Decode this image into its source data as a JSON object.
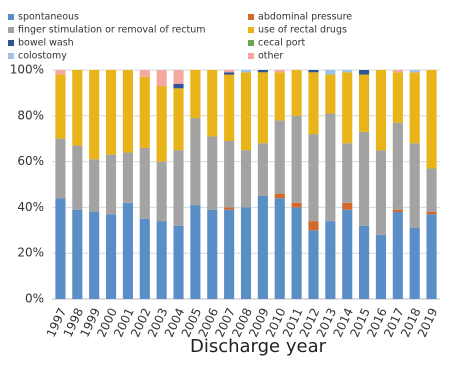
{
  "chart_data": {
    "type": "stacked_bar",
    "x_label": "Discharge year",
    "categories": [
      "1997",
      "1998",
      "1999",
      "2000",
      "2001",
      "2002",
      "2003",
      "2004",
      "2005",
      "2006",
      "2007",
      "2008",
      "2009",
      "2010",
      "2011",
      "2012",
      "2013",
      "2014",
      "2015",
      "2016",
      "2017",
      "2018",
      "2019"
    ],
    "series": [
      {
        "name": "spontaneous",
        "color": "#5a8ec6",
        "values": [
          44,
          39,
          38,
          37,
          42,
          35,
          34,
          32,
          41,
          39,
          39,
          40,
          45,
          44,
          40,
          30,
          34,
          39,
          32,
          28,
          38,
          31,
          37
        ]
      },
      {
        "name": "abdominal pressure",
        "color": "#d2692b",
        "values": [
          0,
          0,
          0,
          0,
          0,
          0,
          0,
          0,
          0,
          0,
          1,
          0,
          0,
          2,
          2,
          4,
          0,
          3,
          0,
          0,
          1,
          0,
          1
        ]
      },
      {
        "name": "finger stimulation or removal of rectum",
        "color": "#a3a3a3",
        "values": [
          26,
          28,
          23,
          26,
          22,
          31,
          26,
          33,
          38,
          32,
          29,
          25,
          23,
          32,
          38,
          38,
          47,
          26,
          41,
          37,
          38,
          37,
          19
        ]
      },
      {
        "name": "use of rectal drugs",
        "color": "#e8b419",
        "values": [
          28,
          33,
          39,
          37,
          36,
          31,
          33,
          27,
          21,
          29,
          29,
          34,
          31,
          21,
          20,
          27,
          17,
          31,
          25,
          35,
          22,
          31,
          43
        ]
      },
      {
        "name": "bowel wash",
        "color": "#2f5496",
        "values": [
          0,
          0,
          0,
          0,
          0,
          0,
          0,
          2,
          0,
          0,
          1,
          0,
          1,
          0,
          0,
          1,
          0,
          0,
          2,
          0,
          0,
          0,
          0
        ]
      },
      {
        "name": "cecal port",
        "color": "#6aa84f",
        "values": [
          0,
          0,
          0,
          0,
          0,
          0,
          0,
          0,
          0,
          0,
          0,
          0,
          0,
          0,
          0,
          0,
          0,
          0,
          0,
          0,
          0,
          0,
          0
        ]
      },
      {
        "name": "colostomy",
        "color": "#9dc3e6",
        "values": [
          0,
          0,
          0,
          0,
          0,
          0,
          0,
          0,
          0,
          0,
          0,
          1,
          0,
          0,
          0,
          0,
          2,
          1,
          0,
          0,
          0,
          1,
          0
        ]
      },
      {
        "name": "other",
        "color": "#f4a9a0",
        "values": [
          2,
          0,
          0,
          0,
          0,
          3,
          7,
          6,
          0,
          0,
          1,
          0,
          0,
          1,
          0,
          0,
          0,
          0,
          0,
          0,
          1,
          0,
          0
        ]
      }
    ],
    "ylim": [
      0,
      100
    ],
    "yticks": [
      {
        "value": 0,
        "label": "0%"
      },
      {
        "value": 20,
        "label": "20%"
      },
      {
        "value": 40,
        "label": "40%"
      },
      {
        "value": 60,
        "label": "60%"
      },
      {
        "value": 80,
        "label": "80%"
      },
      {
        "value": 100,
        "label": "100%"
      }
    ],
    "grid": true
  }
}
